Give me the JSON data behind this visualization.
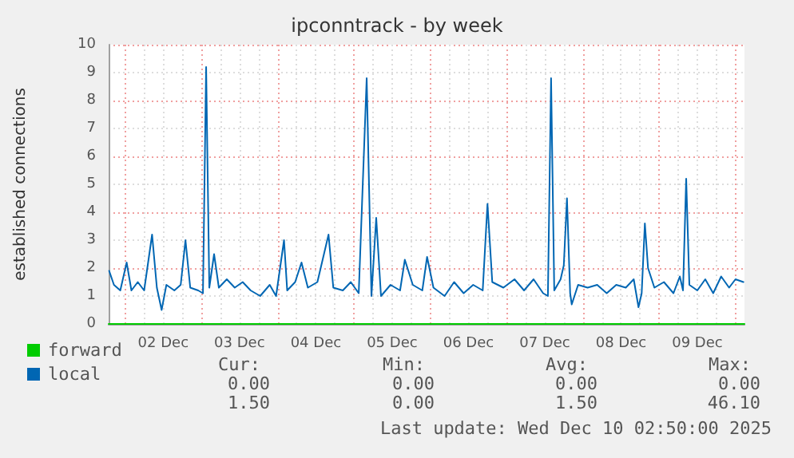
{
  "chart_data": {
    "type": "line",
    "title": "ipconntrack - by week",
    "ylabel": "established connections",
    "xlim": [
      "2025-12-01T18:50",
      "2025-12-10T02:50"
    ],
    "xticks": [
      {
        "value": "2025-12-02T12:00",
        "label": "02 Dec"
      },
      {
        "value": "2025-12-03T12:00",
        "label": "03 Dec"
      },
      {
        "value": "2025-12-04T12:00",
        "label": "04 Dec"
      },
      {
        "value": "2025-12-05T12:00",
        "label": "05 Dec"
      },
      {
        "value": "2025-12-06T12:00",
        "label": "06 Dec"
      },
      {
        "value": "2025-12-07T12:00",
        "label": "07 Dec"
      },
      {
        "value": "2025-12-08T12:00",
        "label": "08 Dec"
      },
      {
        "value": "2025-12-09T12:00",
        "label": "09 Dec"
      }
    ],
    "ylim": [
      0,
      10
    ],
    "yticks": [
      0,
      1,
      2,
      3,
      4,
      5,
      6,
      7,
      8,
      9,
      10
    ],
    "grid": true,
    "legend": "bottom left",
    "marker": "none",
    "line_style": "solid",
    "series": [
      {
        "name": "forward",
        "color": "#00cc00",
        "x": [
          "2025-12-01T18:50",
          "2025-12-10T02:50"
        ],
        "values": [
          0,
          0
        ]
      },
      {
        "name": "local",
        "color": "#0066b3",
        "x": [
          "2025-12-01T19:00",
          "2025-12-01T20:30",
          "2025-12-01T22:30",
          "2025-12-02T00:30",
          "2025-12-02T02:00",
          "2025-12-02T04:00",
          "2025-12-02T06:00",
          "2025-12-02T08:30",
          "2025-12-02T10:00",
          "2025-12-02T11:30",
          "2025-12-02T13:00",
          "2025-12-02T15:30",
          "2025-12-02T17:30",
          "2025-12-02T19:00",
          "2025-12-02T20:30",
          "2025-12-02T23:00",
          "2025-12-03T00:30",
          "2025-12-03T01:30",
          "2025-12-03T02:30",
          "2025-12-03T04:00",
          "2025-12-03T05:30",
          "2025-12-03T08:00",
          "2025-12-03T10:30",
          "2025-12-03T13:00",
          "2025-12-03T15:30",
          "2025-12-03T18:30",
          "2025-12-03T21:30",
          "2025-12-03T23:30",
          "2025-12-04T02:00",
          "2025-12-04T03:00",
          "2025-12-04T05:30",
          "2025-12-04T07:30",
          "2025-12-04T09:30",
          "2025-12-04T12:30",
          "2025-12-04T16:00",
          "2025-12-04T17:30",
          "2025-12-04T20:30",
          "2025-12-04T23:00",
          "2025-12-05T01:30",
          "2025-12-05T04:00",
          "2025-12-05T05:30",
          "2025-12-05T07:00",
          "2025-12-05T08:30",
          "2025-12-05T11:30",
          "2025-12-05T14:30",
          "2025-12-05T16:00",
          "2025-12-05T18:30",
          "2025-12-05T21:30",
          "2025-12-05T23:00",
          "2025-12-06T01:00",
          "2025-12-06T04:30",
          "2025-12-06T07:30",
          "2025-12-06T10:30",
          "2025-12-06T13:30",
          "2025-12-06T16:30",
          "2025-12-06T18:00",
          "2025-12-06T19:30",
          "2025-12-06T23:00",
          "2025-12-07T02:30",
          "2025-12-07T05:30",
          "2025-12-07T08:30",
          "2025-12-07T11:30",
          "2025-12-07T13:00",
          "2025-12-07T14:00",
          "2025-12-07T15:00",
          "2025-12-07T17:00",
          "2025-12-07T18:00",
          "2025-12-07T19:00",
          "2025-12-07T20:00",
          "2025-12-07T20:30",
          "2025-12-07T22:30",
          "2025-12-08T01:30",
          "2025-12-08T04:30",
          "2025-12-08T07:30",
          "2025-12-08T10:30",
          "2025-12-08T13:30",
          "2025-12-08T16:00",
          "2025-12-08T17:30",
          "2025-12-08T18:30",
          "2025-12-08T19:30",
          "2025-12-08T20:30",
          "2025-12-08T22:30",
          "2025-12-09T01:30",
          "2025-12-09T04:30",
          "2025-12-09T06:30",
          "2025-12-09T07:30",
          "2025-12-09T08:30",
          "2025-12-09T09:30",
          "2025-12-09T12:00",
          "2025-12-09T14:30",
          "2025-12-09T17:00",
          "2025-12-09T19:30",
          "2025-12-09T22:00",
          "2025-12-10T00:00",
          "2025-12-10T02:30"
        ],
        "values": [
          1.9,
          1.4,
          1.2,
          2.2,
          1.2,
          1.5,
          1.2,
          3.2,
          1.3,
          0.5,
          1.4,
          1.2,
          1.4,
          3.0,
          1.3,
          1.2,
          1.1,
          9.2,
          1.3,
          2.5,
          1.3,
          1.6,
          1.3,
          1.5,
          1.2,
          1.0,
          1.4,
          1.0,
          3.0,
          1.2,
          1.5,
          2.2,
          1.3,
          1.5,
          3.2,
          1.3,
          1.2,
          1.5,
          1.1,
          8.8,
          1.0,
          3.8,
          1.0,
          1.4,
          1.2,
          2.3,
          1.4,
          1.2,
          2.4,
          1.3,
          1.0,
          1.5,
          1.1,
          1.4,
          1.2,
          4.3,
          1.5,
          1.3,
          1.6,
          1.2,
          1.6,
          1.1,
          1.0,
          8.8,
          1.2,
          1.6,
          2.1,
          4.5,
          1.1,
          0.7,
          1.4,
          1.3,
          1.4,
          1.1,
          1.4,
          1.3,
          1.6,
          0.6,
          1.1,
          3.6,
          2.0,
          1.3,
          1.5,
          1.1,
          1.7,
          1.2,
          5.2,
          1.4,
          1.2,
          1.6,
          1.1,
          1.7,
          1.3,
          1.6,
          1.5
        ]
      }
    ],
    "annotations": [
      "Cur:",
      "Min:",
      "Avg:",
      "Max:",
      "0.00",
      "0.00",
      "0.00",
      "0.00",
      "1.50",
      "0.00",
      "1.50",
      "46.10",
      "Last update: Wed Dec 10 02:50:00 2025"
    ]
  }
}
